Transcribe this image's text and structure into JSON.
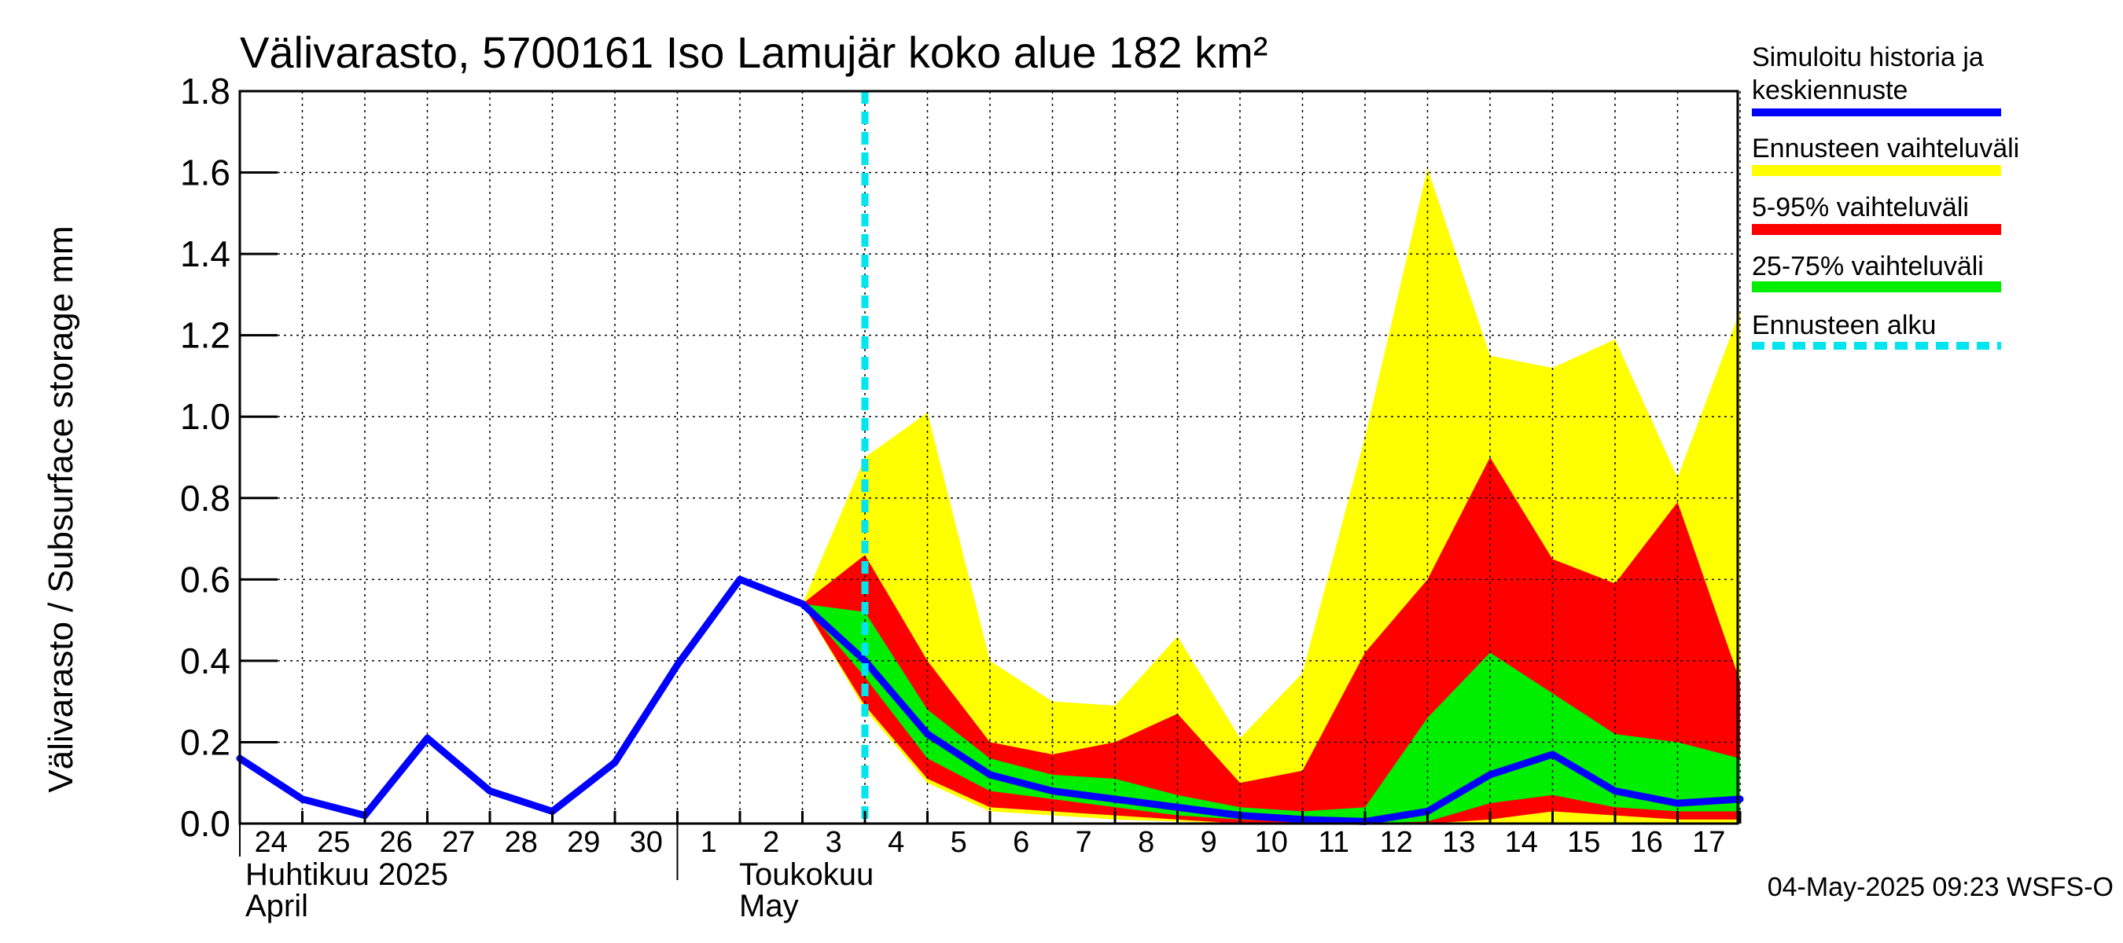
{
  "chart_data": {
    "type": "area",
    "title": "Välivarasto, 5700161 Iso Lamujär koko alue 182 km²",
    "ylabel": "Välivarasto / Subsurface storage  mm",
    "xlabel": "",
    "ylim": [
      0,
      1.8
    ],
    "yticks": [
      "0.0",
      "0.2",
      "0.4",
      "0.6",
      "0.8",
      "1.0",
      "1.2",
      "1.4",
      "1.6",
      "1.8"
    ],
    "grid": true,
    "legend_position": "right",
    "x_day_labels": [
      "24",
      "25",
      "26",
      "27",
      "28",
      "29",
      "30",
      "1",
      "2",
      "3",
      "4",
      "5",
      "6",
      "7",
      "8",
      "9",
      "10",
      "11",
      "12",
      "13",
      "14",
      "15",
      "16",
      "17"
    ],
    "month_labels": {
      "april_fi": "Huhtikuu  2025",
      "april_en": "April",
      "may_fi": "Toukokuu",
      "may_en": "May"
    },
    "forecast_start": "2025-05-04",
    "history": {
      "x": [
        "2025-04-24",
        "2025-04-25",
        "2025-04-26",
        "2025-04-27",
        "2025-04-28",
        "2025-04-29",
        "2025-04-30",
        "2025-05-01",
        "2025-05-02",
        "2025-05-03"
      ],
      "y": [
        0.16,
        0.06,
        0.02,
        0.21,
        0.08,
        0.03,
        0.15,
        0.39,
        0.6,
        0.54
      ]
    },
    "forecast": {
      "x": [
        "2025-05-03",
        "2025-05-04",
        "2025-05-05",
        "2025-05-06",
        "2025-05-07",
        "2025-05-08",
        "2025-05-09",
        "2025-05-10",
        "2025-05-11",
        "2025-05-12",
        "2025-05-13",
        "2025-05-14",
        "2025-05-15",
        "2025-05-16",
        "2025-05-17",
        "2025-05-18"
      ],
      "median": [
        0.54,
        0.4,
        0.22,
        0.12,
        0.08,
        0.06,
        0.04,
        0.02,
        0.01,
        0.005,
        0.03,
        0.12,
        0.17,
        0.08,
        0.05,
        0.06
      ],
      "range_high": [
        0.54,
        0.9,
        1.01,
        0.4,
        0.3,
        0.29,
        0.46,
        0.21,
        0.37,
        0.95,
        1.61,
        1.15,
        1.12,
        1.19,
        0.85,
        1.26
      ],
      "range_low": [
        0.54,
        0.28,
        0.1,
        0.03,
        0.02,
        0.01,
        0.005,
        0.0,
        0.0,
        0.0,
        0.0,
        0.0,
        0.0,
        0.0,
        0.0,
        0.0
      ],
      "p95": [
        0.54,
        0.66,
        0.4,
        0.2,
        0.17,
        0.2,
        0.27,
        0.1,
        0.13,
        0.42,
        0.6,
        0.9,
        0.65,
        0.59,
        0.79,
        0.35
      ],
      "p5": [
        0.54,
        0.29,
        0.11,
        0.04,
        0.03,
        0.02,
        0.01,
        0.0,
        0.0,
        0.0,
        0.0,
        0.01,
        0.03,
        0.02,
        0.01,
        0.01
      ],
      "p75": [
        0.54,
        0.52,
        0.28,
        0.16,
        0.12,
        0.11,
        0.07,
        0.04,
        0.03,
        0.04,
        0.26,
        0.42,
        0.32,
        0.22,
        0.2,
        0.16
      ],
      "p25": [
        0.54,
        0.36,
        0.16,
        0.08,
        0.06,
        0.04,
        0.02,
        0.01,
        0.005,
        0.0,
        0.005,
        0.05,
        0.07,
        0.04,
        0.03,
        0.03
      ]
    },
    "series": [
      {
        "name": "Simuloitu historia ja keskiennuste",
        "color": "#0000ff"
      },
      {
        "name": "Ennusteen vaihteluväli",
        "color": "#ffff00"
      },
      {
        "name": "5-95% vaihteluväli",
        "color": "#ff0000"
      },
      {
        "name": "25-75% vaihteluväli",
        "color": "#00ee00"
      },
      {
        "name": "Ennusteen alku",
        "color": "#00e5ee"
      }
    ],
    "legend": {
      "history_line1": "Simuloitu historia ja",
      "history_line2": "keskiennuste",
      "range": "Ennusteen vaihteluväli",
      "p5_95": "5-95% vaihteluväli",
      "p25_75": "25-75% vaihteluväli",
      "forecast_start": "Ennusteen alku"
    },
    "footer": "04-May-2025 09:23 WSFS-O"
  }
}
